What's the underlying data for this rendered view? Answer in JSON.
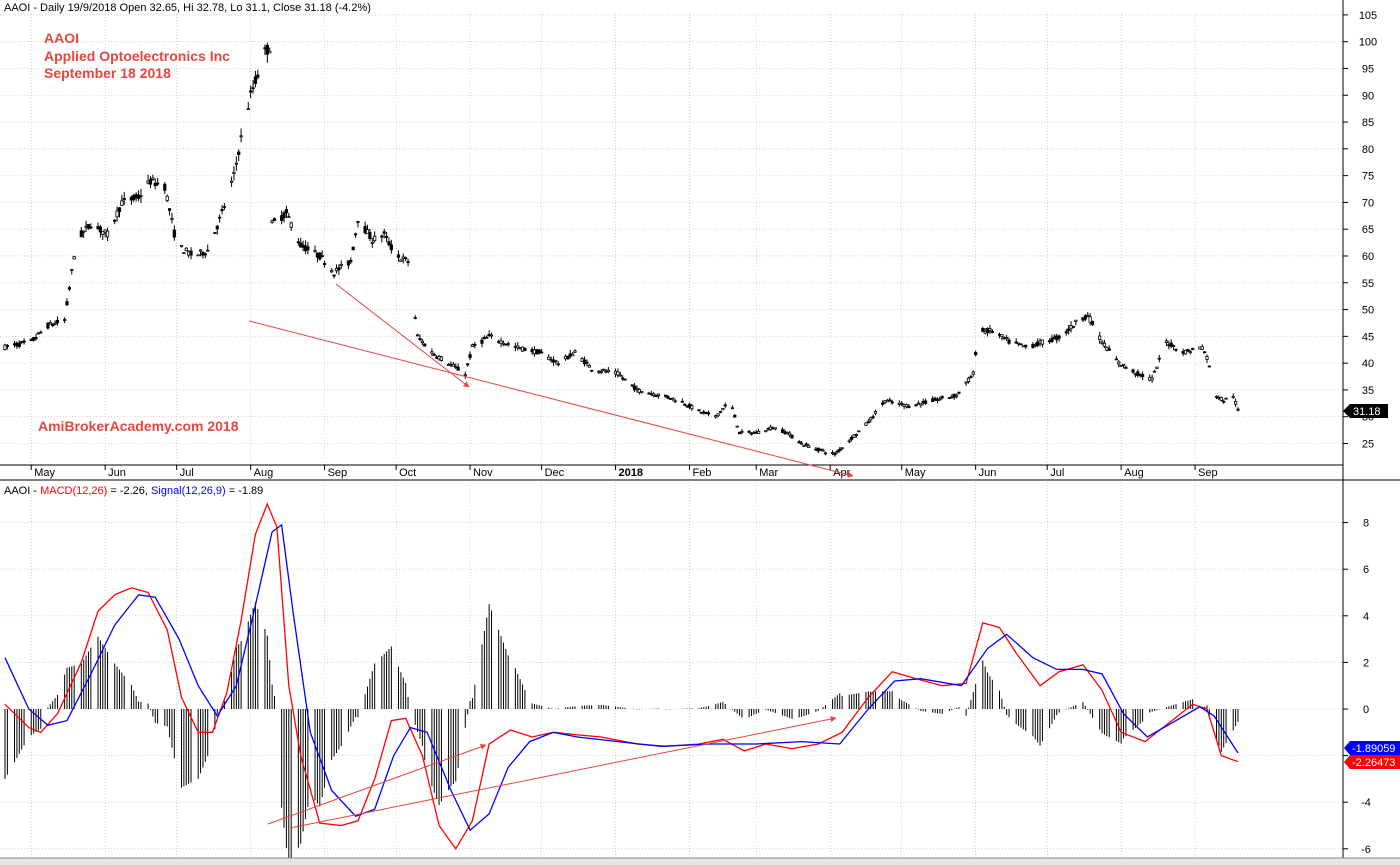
{
  "header": {
    "top": "AAOI - Daily 19/9/2018 Open 32.65, Hi 32.78, Lo 31.1, Close 31.18 (-4.2%)",
    "bottom_prefix": "AAOI - ",
    "bottom_macd": "MACD(12,26)",
    "bottom_macd_val": " = -2.26, ",
    "bottom_signal": "Signal(12,26,9)",
    "bottom_signal_val": " = -1.89"
  },
  "annotation": {
    "ticker": "AAOI",
    "company": "Applied Optoelectronics Inc",
    "date": "September 18 2018",
    "watermark": "AmiBrokerAcademy.com  2018"
  },
  "colors": {
    "price_bars": "#000000",
    "macd": "#ff0000",
    "signal": "#0000ff",
    "histogram": "#000000",
    "trend_lines": "#e8453c",
    "last_price_tag": "#000000"
  },
  "tags": {
    "last_close": "31.18",
    "signal_last": "-1.89059",
    "macd_last": "-2.26473"
  },
  "chart_data": [
    {
      "type": "ohlc",
      "title": "AAOI - Daily 19/9/2018 Open 32.65, Hi 32.78, Lo 31.1, Close 31.18 (-4.2%)",
      "x_tick_labels": [
        "May",
        "Jun",
        "Jul",
        "Aug",
        "Sep",
        "Oct",
        "Nov",
        "Dec",
        "2018",
        "Feb",
        "Mar",
        "Apr",
        "May",
        "Jun",
        "Jul",
        "Aug",
        "Sep"
      ],
      "y_tick_labels": [
        "25",
        "30",
        "35",
        "40",
        "45",
        "50",
        "55",
        "60",
        "65",
        "70",
        "75",
        "80",
        "85",
        "90",
        "95",
        "100",
        "105"
      ],
      "ylim": [
        20,
        108
      ],
      "grid": true,
      "price_path": [
        [
          "2017-04-20",
          43
        ],
        [
          "2017-05-01",
          44
        ],
        [
          "2017-05-08",
          47
        ],
        [
          "2017-05-15",
          48
        ],
        [
          "2017-05-20",
          63
        ],
        [
          "2017-05-26",
          66
        ],
        [
          "2017-06-02",
          64
        ],
        [
          "2017-06-08",
          70
        ],
        [
          "2017-06-15",
          71
        ],
        [
          "2017-06-20",
          74
        ],
        [
          "2017-06-26",
          73
        ],
        [
          "2017-07-01",
          62
        ],
        [
          "2017-07-08",
          60
        ],
        [
          "2017-07-14",
          61
        ],
        [
          "2017-07-20",
          68
        ],
        [
          "2017-07-25",
          75
        ],
        [
          "2017-07-28",
          82
        ],
        [
          "2017-08-01",
          90
        ],
        [
          "2017-08-07",
          98
        ],
        [
          "2017-08-09",
          99
        ],
        [
          "2017-08-10",
          66
        ],
        [
          "2017-08-16",
          68
        ],
        [
          "2017-08-22",
          62
        ],
        [
          "2017-08-30",
          60
        ],
        [
          "2017-09-05",
          57
        ],
        [
          "2017-09-12",
          59
        ],
        [
          "2017-09-15",
          67
        ],
        [
          "2017-09-21",
          63
        ],
        [
          "2017-09-26",
          64
        ],
        [
          "2017-10-01",
          60
        ],
        [
          "2017-10-06",
          59
        ],
        [
          "2017-10-10",
          45
        ],
        [
          "2017-10-16",
          42
        ],
        [
          "2017-10-23",
          40
        ],
        [
          "2017-10-30",
          38
        ],
        [
          "2017-11-02",
          43
        ],
        [
          "2017-11-09",
          45
        ],
        [
          "2017-11-20",
          43
        ],
        [
          "2017-11-30",
          42
        ],
        [
          "2017-12-08",
          40
        ],
        [
          "2017-12-15",
          42
        ],
        [
          "2017-12-22",
          39
        ],
        [
          "2018-01-02",
          38
        ],
        [
          "2018-01-10",
          35
        ],
        [
          "2018-01-20",
          34
        ],
        [
          "2018-01-28",
          33
        ],
        [
          "2018-02-05",
          31
        ],
        [
          "2018-02-12",
          30
        ],
        [
          "2018-02-18",
          33
        ],
        [
          "2018-02-22",
          27
        ],
        [
          "2018-03-01",
          27
        ],
        [
          "2018-03-08",
          28
        ],
        [
          "2018-03-14",
          27
        ],
        [
          "2018-03-20",
          25
        ],
        [
          "2018-03-26",
          24
        ],
        [
          "2018-04-03",
          23
        ],
        [
          "2018-04-10",
          26
        ],
        [
          "2018-04-17",
          29
        ],
        [
          "2018-04-24",
          33
        ],
        [
          "2018-05-04",
          32
        ],
        [
          "2018-05-14",
          33
        ],
        [
          "2018-05-24",
          34
        ],
        [
          "2018-05-31",
          38
        ],
        [
          "2018-06-02",
          46
        ],
        [
          "2018-06-08",
          46
        ],
        [
          "2018-06-15",
          44
        ],
        [
          "2018-06-22",
          43
        ],
        [
          "2018-06-30",
          44
        ],
        [
          "2018-07-07",
          45
        ],
        [
          "2018-07-14",
          48
        ],
        [
          "2018-07-18",
          49
        ],
        [
          "2018-07-24",
          44
        ],
        [
          "2018-07-31",
          40
        ],
        [
          "2018-08-08",
          38
        ],
        [
          "2018-08-14",
          37
        ],
        [
          "2018-08-20",
          44
        ],
        [
          "2018-08-27",
          42
        ],
        [
          "2018-09-04",
          43
        ],
        [
          "2018-09-06",
          41
        ],
        [
          "2018-09-10",
          34
        ],
        [
          "2018-09-13",
          33
        ],
        [
          "2018-09-17",
          34
        ],
        [
          "2018-09-19",
          31.18
        ]
      ]
    },
    {
      "type": "line",
      "title": "AAOI - MACD(12,26) = -2.26, Signal(12,26,9) = -1.89",
      "y_tick_labels": [
        "-6",
        "-4",
        "-2",
        "0",
        "2",
        "4",
        "6",
        "8"
      ],
      "ylim": [
        -6,
        9
      ],
      "grid": true,
      "histogram": "MACD minus Signal",
      "series": [
        {
          "name": "MACD(12,26)",
          "points": [
            [
              "2017-04-20",
              0.2
            ],
            [
              "2017-04-30",
              -0.8
            ],
            [
              "2017-05-05",
              -1.0
            ],
            [
              "2017-05-12",
              -0.2
            ],
            [
              "2017-05-22",
              2.0
            ],
            [
              "2017-05-29",
              4.2
            ],
            [
              "2017-06-05",
              4.9
            ],
            [
              "2017-06-12",
              5.2
            ],
            [
              "2017-06-19",
              5.0
            ],
            [
              "2017-06-27",
              3.4
            ],
            [
              "2017-07-03",
              0.5
            ],
            [
              "2017-07-10",
              -1.0
            ],
            [
              "2017-07-16",
              -1.0
            ],
            [
              "2017-07-22",
              0.7
            ],
            [
              "2017-07-28",
              3.8
            ],
            [
              "2017-08-03",
              7.5
            ],
            [
              "2017-08-08",
              8.8
            ],
            [
              "2017-08-12",
              7.8
            ],
            [
              "2017-08-17",
              1.0
            ],
            [
              "2017-08-22",
              -2.0
            ],
            [
              "2017-08-30",
              -4.9
            ],
            [
              "2017-09-08",
              -5.0
            ],
            [
              "2017-09-15",
              -4.8
            ],
            [
              "2017-09-22",
              -3.0
            ],
            [
              "2017-09-29",
              -0.5
            ],
            [
              "2017-10-05",
              -0.4
            ],
            [
              "2017-10-12",
              -2.0
            ],
            [
              "2017-10-19",
              -5.0
            ],
            [
              "2017-10-26",
              -6.0
            ],
            [
              "2017-11-02",
              -4.8
            ],
            [
              "2017-11-09",
              -1.5
            ],
            [
              "2017-11-18",
              -0.9
            ],
            [
              "2017-11-27",
              -1.2
            ],
            [
              "2017-12-06",
              -1.0
            ],
            [
              "2017-12-15",
              -1.1
            ],
            [
              "2017-12-26",
              -1.2
            ],
            [
              "2018-01-10",
              -1.5
            ],
            [
              "2018-01-22",
              -1.6
            ],
            [
              "2018-02-05",
              -1.5
            ],
            [
              "2018-02-15",
              -1.3
            ],
            [
              "2018-02-24",
              -1.8
            ],
            [
              "2018-03-05",
              -1.5
            ],
            [
              "2018-03-16",
              -1.7
            ],
            [
              "2018-03-27",
              -1.5
            ],
            [
              "2018-04-06",
              -1.0
            ],
            [
              "2018-04-17",
              0.5
            ],
            [
              "2018-04-27",
              1.6
            ],
            [
              "2018-05-07",
              1.3
            ],
            [
              "2018-05-18",
              1.0
            ],
            [
              "2018-05-28",
              1.1
            ],
            [
              "2018-06-04",
              3.7
            ],
            [
              "2018-06-11",
              3.5
            ],
            [
              "2018-06-18",
              2.4
            ],
            [
              "2018-06-28",
              1.0
            ],
            [
              "2018-07-06",
              1.6
            ],
            [
              "2018-07-16",
              1.9
            ],
            [
              "2018-07-24",
              0.8
            ],
            [
              "2018-08-01",
              -1.0
            ],
            [
              "2018-08-11",
              -1.4
            ],
            [
              "2018-08-21",
              -0.6
            ],
            [
              "2018-08-31",
              0.2
            ],
            [
              "2018-09-06",
              0.0
            ],
            [
              "2018-09-12",
              -2.0
            ],
            [
              "2018-09-19",
              -2.26
            ]
          ]
        },
        {
          "name": "Signal(12,26,9)",
          "points": [
            [
              "2017-04-20",
              2.2
            ],
            [
              "2017-04-30",
              0.0
            ],
            [
              "2017-05-08",
              -0.7
            ],
            [
              "2017-05-16",
              -0.5
            ],
            [
              "2017-05-26",
              1.5
            ],
            [
              "2017-06-05",
              3.6
            ],
            [
              "2017-06-15",
              4.9
            ],
            [
              "2017-06-22",
              4.8
            ],
            [
              "2017-07-02",
              3.0
            ],
            [
              "2017-07-10",
              1.0
            ],
            [
              "2017-07-18",
              -0.3
            ],
            [
              "2017-07-26",
              1.0
            ],
            [
              "2017-08-02",
              4.0
            ],
            [
              "2017-08-10",
              7.6
            ],
            [
              "2017-08-14",
              7.9
            ],
            [
              "2017-08-19",
              4.0
            ],
            [
              "2017-08-26",
              -1.0
            ],
            [
              "2017-09-04",
              -3.5
            ],
            [
              "2017-09-14",
              -4.6
            ],
            [
              "2017-09-22",
              -4.3
            ],
            [
              "2017-09-30",
              -2.0
            ],
            [
              "2017-10-07",
              -0.8
            ],
            [
              "2017-10-14",
              -1.0
            ],
            [
              "2017-10-24",
              -3.5
            ],
            [
              "2017-11-01",
              -5.2
            ],
            [
              "2017-11-09",
              -4.5
            ],
            [
              "2017-11-17",
              -2.5
            ],
            [
              "2017-11-26",
              -1.4
            ],
            [
              "2017-12-06",
              -1.0
            ],
            [
              "2017-12-16",
              -1.2
            ],
            [
              "2018-01-02",
              -1.4
            ],
            [
              "2018-01-20",
              -1.6
            ],
            [
              "2018-02-10",
              -1.5
            ],
            [
              "2018-03-01",
              -1.5
            ],
            [
              "2018-03-20",
              -1.4
            ],
            [
              "2018-04-05",
              -1.5
            ],
            [
              "2018-04-17",
              0.0
            ],
            [
              "2018-04-28",
              1.2
            ],
            [
              "2018-05-09",
              1.3
            ],
            [
              "2018-05-26",
              1.0
            ],
            [
              "2018-06-06",
              2.6
            ],
            [
              "2018-06-14",
              3.2
            ],
            [
              "2018-06-25",
              2.2
            ],
            [
              "2018-07-05",
              1.7
            ],
            [
              "2018-07-16",
              1.7
            ],
            [
              "2018-07-24",
              1.5
            ],
            [
              "2018-08-02",
              -0.2
            ],
            [
              "2018-08-12",
              -1.2
            ],
            [
              "2018-08-24",
              -0.5
            ],
            [
              "2018-09-03",
              0.1
            ],
            [
              "2018-09-09",
              -0.3
            ],
            [
              "2018-09-19",
              -1.89
            ]
          ]
        }
      ]
    }
  ]
}
